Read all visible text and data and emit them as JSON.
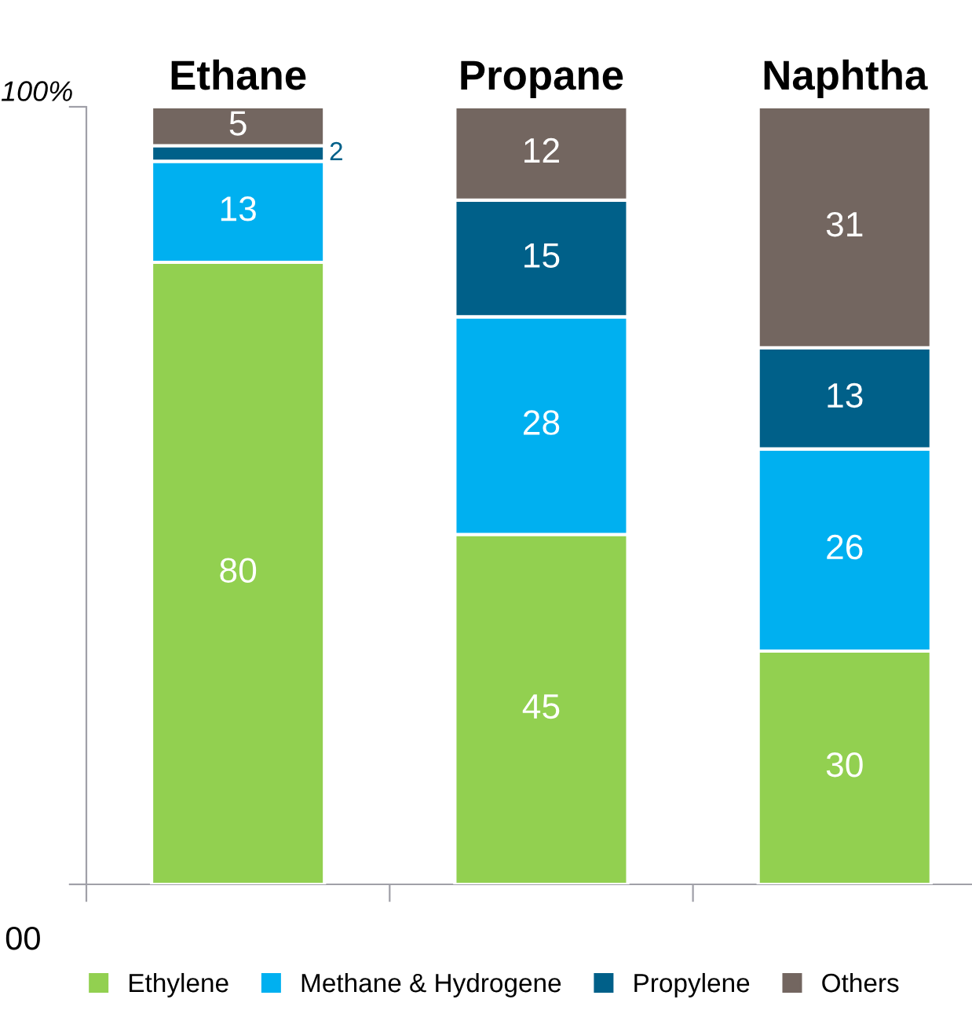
{
  "chart_data": {
    "type": "bar",
    "stacked": true,
    "categories": [
      "Ethane",
      "Propane",
      "Naphtha"
    ],
    "series": [
      {
        "name": "Ethylene",
        "color": "#92d050",
        "values": [
          80,
          45,
          30
        ]
      },
      {
        "name": "Methane & Hydrogene",
        "color": "#00b0f0",
        "values": [
          13,
          28,
          26
        ]
      },
      {
        "name": "Propylene",
        "color": "#006089",
        "values": [
          2,
          15,
          13
        ]
      },
      {
        "name": "Others",
        "color": "#736660",
        "values": [
          5,
          12,
          31
        ]
      }
    ],
    "ylim": [
      0,
      100
    ],
    "yticks": [
      {
        "value": 0,
        "label": null
      },
      {
        "value": 100,
        "label": "100%"
      }
    ],
    "data_labels": true,
    "legend": "bottom",
    "grid": false,
    "annotations": [
      "00"
    ]
  }
}
